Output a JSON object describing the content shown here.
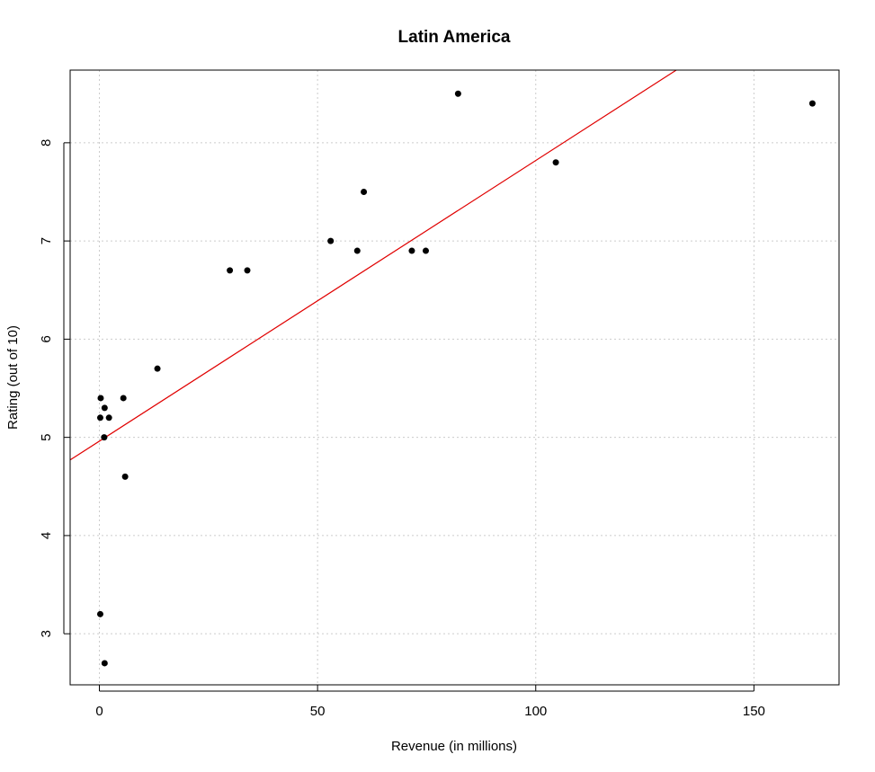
{
  "chart_data": {
    "type": "scatter",
    "title": "Latin America",
    "xlabel": "Revenue (in millions)",
    "ylabel": "Rating (out of 10)",
    "xlim": [
      -6.7,
      169.5
    ],
    "ylim": [
      2.48,
      8.74
    ],
    "x_ticks": [
      0,
      50,
      100,
      150
    ],
    "y_ticks": [
      3,
      4,
      5,
      6,
      7,
      8
    ],
    "grid": true,
    "legend": "none",
    "points_color": "#000000",
    "trendline_color": "#e00000",
    "grid_color": "#cccccc",
    "points": [
      {
        "x": 0.2,
        "y": 3.2
      },
      {
        "x": 1.2,
        "y": 2.7
      },
      {
        "x": 0.2,
        "y": 5.2
      },
      {
        "x": 0.3,
        "y": 5.4
      },
      {
        "x": 1.1,
        "y": 5.0
      },
      {
        "x": 1.2,
        "y": 5.3
      },
      {
        "x": 2.2,
        "y": 5.2
      },
      {
        "x": 5.5,
        "y": 5.4
      },
      {
        "x": 5.9,
        "y": 4.6
      },
      {
        "x": 13.3,
        "y": 5.7
      },
      {
        "x": 29.9,
        "y": 6.7
      },
      {
        "x": 33.9,
        "y": 6.7
      },
      {
        "x": 53.0,
        "y": 7.0
      },
      {
        "x": 59.1,
        "y": 6.9
      },
      {
        "x": 60.6,
        "y": 7.5
      },
      {
        "x": 71.6,
        "y": 6.9
      },
      {
        "x": 74.8,
        "y": 6.9
      },
      {
        "x": 82.2,
        "y": 8.5
      },
      {
        "x": 104.6,
        "y": 7.8
      },
      {
        "x": 163.4,
        "y": 8.4
      }
    ],
    "trendline": {
      "x": [
        -6.7,
        132.2
      ],
      "y": [
        4.77,
        8.74
      ]
    }
  }
}
